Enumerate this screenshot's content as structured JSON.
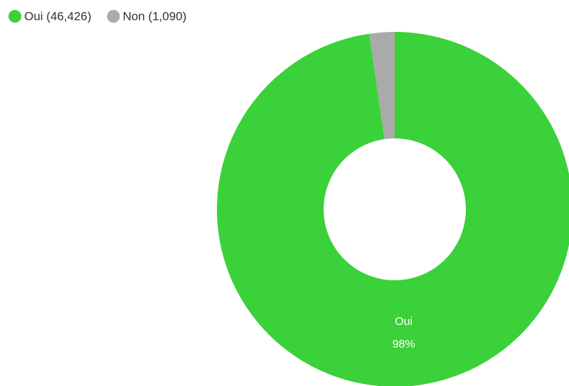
{
  "chart_data": {
    "type": "donut",
    "categories": [
      "Oui",
      "Non"
    ],
    "values": [
      46426,
      1090
    ],
    "value_labels": [
      "98%",
      null
    ],
    "legend_labels": [
      "Oui (46,426)",
      "Non (1,090)"
    ],
    "colors": [
      "#3ad13a",
      "#aaaaaa"
    ]
  }
}
